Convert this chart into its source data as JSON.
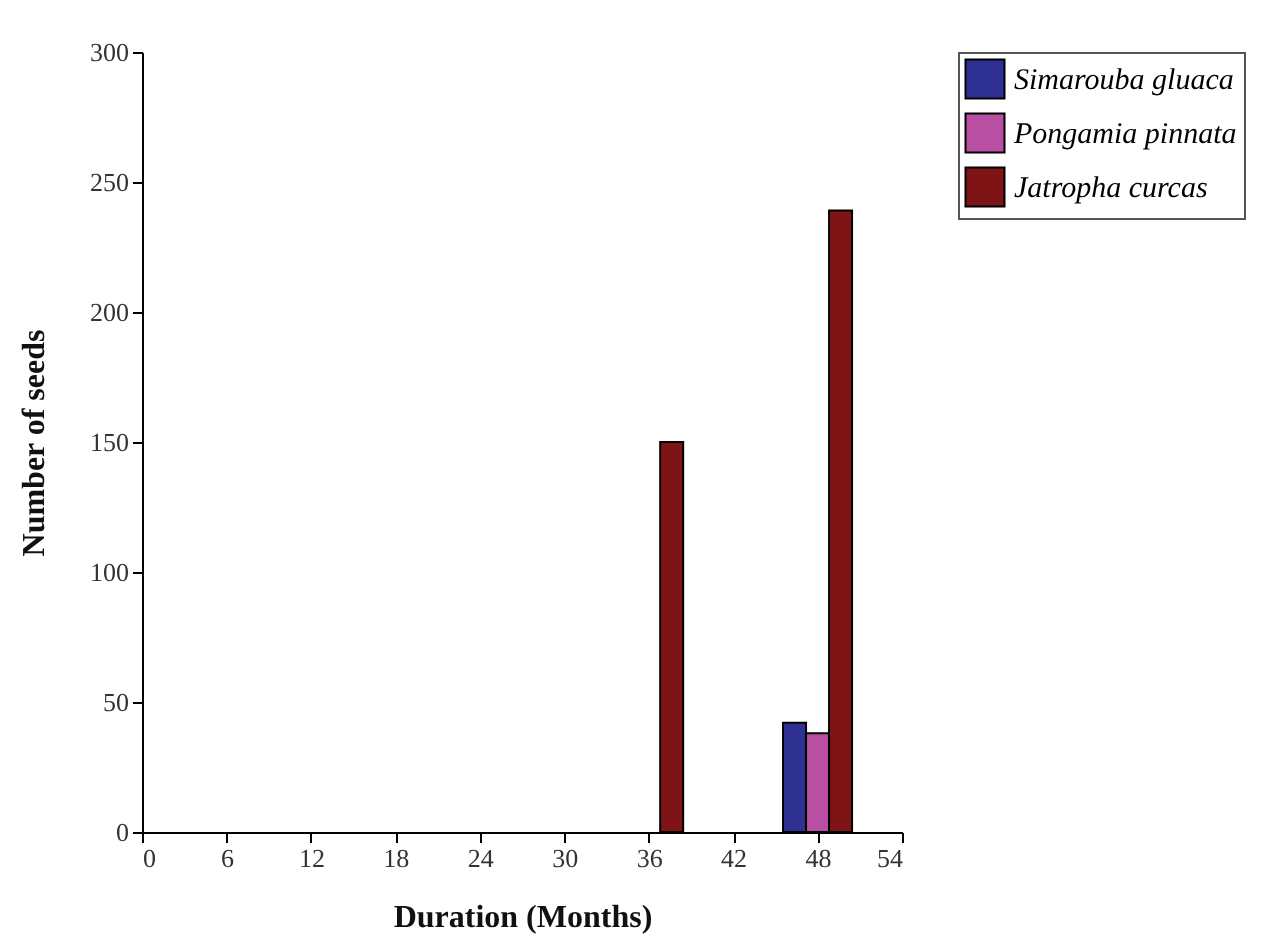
{
  "chart_data": {
    "type": "bar",
    "xlabel": "Duration (Months)",
    "ylabel": "Number of seeds",
    "x": [
      36,
      48
    ],
    "series": [
      {
        "name": "Simarouba gluaca",
        "color": "#2e3192",
        "values": [
          null,
          42
        ]
      },
      {
        "name": "Pongamia pinnata",
        "color": "#b94fa3",
        "values": [
          null,
          38
        ]
      },
      {
        "name": "Jatropha curcas",
        "color": "#7f1416",
        "values": [
          150,
          239
        ]
      }
    ],
    "xlim": [
      0,
      54
    ],
    "xticks": [
      0,
      6,
      12,
      18,
      24,
      30,
      36,
      42,
      48,
      54
    ],
    "ylim": [
      0,
      300
    ],
    "yticks": [
      0,
      50,
      100,
      150,
      200,
      250,
      300
    ],
    "grid": false,
    "legend": "top right"
  }
}
